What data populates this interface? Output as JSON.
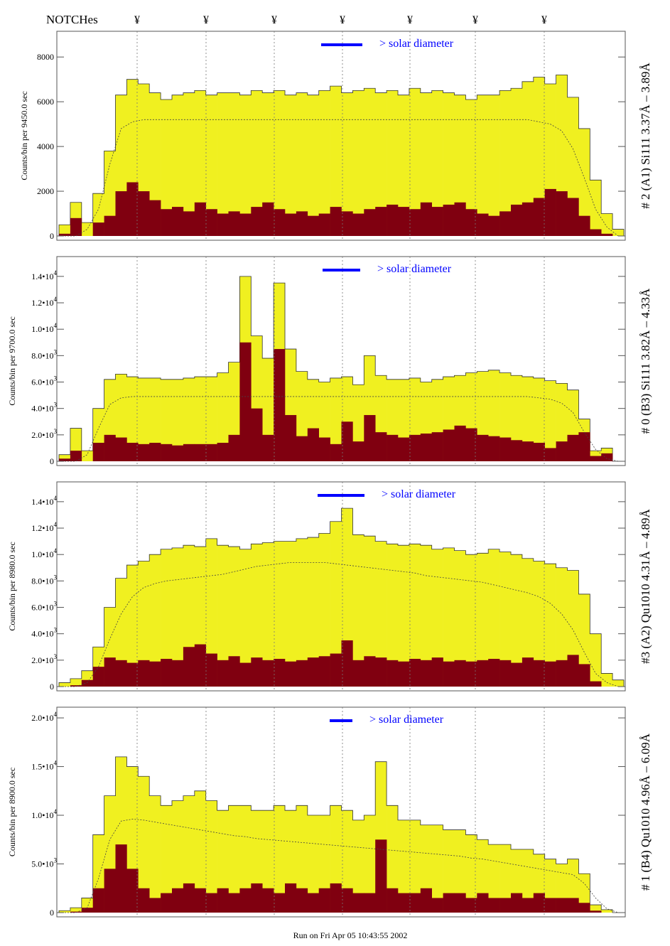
{
  "header": {
    "notches_label": "NOTCHes",
    "notch_symbol": "¥",
    "notch_count": 7
  },
  "footer": {
    "run_text": "Run on Fri Apr 05 10:43:55 2002"
  },
  "colors": {
    "total": "#f0f020",
    "lower": "#800010",
    "legend": "#0000ff"
  },
  "chart_data": [
    {
      "type": "bar",
      "title": "# 2 (A1) Si111  3.37Å – 3.89Å",
      "ylabel": "Counts/bin per   9450.0 sec",
      "legend": "> solar diameter",
      "ylim": [
        0,
        9150
      ],
      "yticks": [
        {
          "v": 0,
          "m": "0",
          "e": ""
        },
        {
          "v": 2000,
          "m": "2000",
          "e": ""
        },
        {
          "v": 4000,
          "m": "4000",
          "e": ""
        },
        {
          "v": 6000,
          "m": "6000",
          "e": ""
        },
        {
          "v": 8000,
          "m": "8000",
          "e": ""
        }
      ],
      "total": [
        500,
        1500,
        600,
        1900,
        3800,
        6300,
        7000,
        6800,
        6400,
        6100,
        6300,
        6400,
        6500,
        6300,
        6400,
        6400,
        6300,
        6500,
        6400,
        6500,
        6300,
        6400,
        6300,
        6500,
        6700,
        6400,
        6500,
        6600,
        6400,
        6500,
        6300,
        6600,
        6400,
        6500,
        6400,
        6300,
        6100,
        6300,
        6300,
        6500,
        6600,
        6900,
        7100,
        6800,
        7200,
        6200,
        4800,
        2500,
        1000,
        300
      ],
      "lower": [
        100,
        800,
        0,
        600,
        900,
        2000,
        2400,
        2000,
        1600,
        1200,
        1300,
        1100,
        1500,
        1200,
        1000,
        1100,
        1000,
        1300,
        1500,
        1200,
        1000,
        1100,
        900,
        1000,
        1300,
        1100,
        1000,
        1200,
        1300,
        1400,
        1300,
        1200,
        1500,
        1300,
        1400,
        1500,
        1200,
        1000,
        900,
        1100,
        1400,
        1500,
        1700,
        2100,
        2000,
        1700,
        900,
        300,
        100,
        0
      ],
      "model": [
        0,
        0,
        300,
        1200,
        3200,
        4800,
        5100,
        5200,
        5200,
        5200,
        5200,
        5200,
        5200,
        5200,
        5200,
        5200,
        5200,
        5200,
        5200,
        5200,
        5200,
        5200,
        5200,
        5200,
        5200,
        5200,
        5200,
        5200,
        5200,
        5200,
        5200,
        5200,
        5200,
        5200,
        5200,
        5200,
        5200,
        5200,
        5200,
        5200,
        5200,
        5200,
        5100,
        5000,
        4700,
        3900,
        2600,
        1200,
        400,
        0
      ]
    },
    {
      "type": "bar",
      "title": "# 0 (B3) Si111  3.82Å – 4.33Å",
      "ylabel": "Counts/bin per   9700.0 sec",
      "legend": "> solar diameter",
      "ylim": [
        0,
        15500
      ],
      "yticks": [
        {
          "v": 0,
          "m": "0",
          "e": ""
        },
        {
          "v": 2000,
          "m": "2.0•10",
          "e": "3"
        },
        {
          "v": 4000,
          "m": "4.0•10",
          "e": "3"
        },
        {
          "v": 6000,
          "m": "6.0•10",
          "e": "3"
        },
        {
          "v": 8000,
          "m": "8.0•10",
          "e": "3"
        },
        {
          "v": 10000,
          "m": "1.0•10",
          "e": "4"
        },
        {
          "v": 12000,
          "m": "1.2•10",
          "e": "4"
        },
        {
          "v": 14000,
          "m": "1.4•10",
          "e": "4"
        }
      ],
      "total": [
        500,
        2500,
        800,
        4000,
        6200,
        6600,
        6400,
        6300,
        6300,
        6200,
        6200,
        6300,
        6400,
        6400,
        6700,
        7500,
        14000,
        9500,
        7800,
        13500,
        8500,
        6800,
        6200,
        6000,
        6300,
        6400,
        5800,
        8000,
        6500,
        6200,
        6200,
        6300,
        6000,
        6200,
        6400,
        6500,
        6700,
        6800,
        6900,
        6700,
        6500,
        6400,
        6300,
        6100,
        5900,
        5400,
        3200,
        800,
        1000,
        0
      ],
      "lower": [
        200,
        800,
        0,
        1400,
        2000,
        1800,
        1400,
        1300,
        1400,
        1300,
        1200,
        1300,
        1300,
        1300,
        1400,
        2000,
        9000,
        4000,
        2000,
        8500,
        3500,
        1900,
        2500,
        1800,
        1300,
        3000,
        1500,
        3500,
        2200,
        2000,
        1800,
        2000,
        2100,
        2200,
        2400,
        2700,
        2500,
        2000,
        1900,
        1800,
        1600,
        1500,
        1400,
        1000,
        1500,
        2000,
        2200,
        400,
        600,
        0
      ],
      "model": [
        0,
        0,
        500,
        2500,
        4300,
        4800,
        4900,
        4900,
        4900,
        4900,
        4900,
        4900,
        4900,
        4900,
        4900,
        4900,
        4900,
        4900,
        4900,
        4900,
        4900,
        4900,
        4900,
        4900,
        4900,
        4900,
        4900,
        4900,
        4900,
        4900,
        4900,
        4900,
        4900,
        4900,
        4900,
        4900,
        4900,
        4900,
        4900,
        4900,
        4900,
        4900,
        4800,
        4700,
        4400,
        3700,
        2200,
        900,
        200,
        0
      ]
    },
    {
      "type": "bar",
      "title": "#3 (A2) Qu1010  4.31Å – 4.89Å",
      "ylabel": "Counts/bin per   8980.0 sec",
      "legend": "> solar diameter",
      "ylim": [
        0,
        15500
      ],
      "yticks": [
        {
          "v": 0,
          "m": "0",
          "e": ""
        },
        {
          "v": 2000,
          "m": "2.0•10",
          "e": "3"
        },
        {
          "v": 4000,
          "m": "4.0•10",
          "e": "3"
        },
        {
          "v": 6000,
          "m": "6.0•10",
          "e": "3"
        },
        {
          "v": 8000,
          "m": "8.0•10",
          "e": "3"
        },
        {
          "v": 10000,
          "m": "1.0•10",
          "e": "4"
        },
        {
          "v": 12000,
          "m": "1.2•10",
          "e": "4"
        },
        {
          "v": 14000,
          "m": "1.4•10",
          "e": "4"
        }
      ],
      "total": [
        300,
        600,
        1200,
        3000,
        6000,
        8200,
        9200,
        9500,
        10000,
        10400,
        10500,
        10700,
        10600,
        11200,
        10700,
        10600,
        10400,
        10800,
        10900,
        11000,
        11000,
        11200,
        11300,
        11600,
        12500,
        13500,
        11500,
        11400,
        11000,
        10800,
        10700,
        10800,
        10700,
        10400,
        10500,
        10300,
        10000,
        10100,
        10400,
        10200,
        10000,
        9700,
        9500,
        9300,
        9000,
        8800,
        7000,
        4000,
        1000,
        500
      ],
      "lower": [
        0,
        100,
        500,
        1500,
        2200,
        2000,
        1800,
        2000,
        1900,
        2100,
        2000,
        3000,
        3200,
        2500,
        2000,
        2300,
        1800,
        2200,
        2000,
        2100,
        1900,
        2000,
        2200,
        2300,
        2500,
        3500,
        2000,
        2300,
        2200,
        2000,
        1900,
        2100,
        2000,
        2200,
        1900,
        2000,
        1900,
        2000,
        2100,
        2000,
        1800,
        2200,
        2000,
        1900,
        2000,
        2400,
        1700,
        400,
        0,
        0
      ],
      "model": [
        0,
        0,
        300,
        1500,
        3600,
        5500,
        6800,
        7500,
        7800,
        8000,
        8100,
        8200,
        8300,
        8400,
        8500,
        8700,
        8900,
        9100,
        9200,
        9300,
        9400,
        9400,
        9400,
        9400,
        9300,
        9200,
        9100,
        9000,
        8900,
        8800,
        8700,
        8600,
        8400,
        8300,
        8200,
        8100,
        8000,
        7900,
        7700,
        7500,
        7300,
        7100,
        6800,
        6300,
        5500,
        4300,
        2600,
        1000,
        300,
        0
      ]
    },
    {
      "type": "bar",
      "title": "# 1 (B4) Qu1010 4.96Å – 6.09Å",
      "ylabel": "Counts/bin per   8900.0 sec",
      "legend": "> solar diameter",
      "ylim": [
        0,
        21100
      ],
      "yticks": [
        {
          "v": 0,
          "m": "0",
          "e": ""
        },
        {
          "v": 5000,
          "m": "5.0•10",
          "e": "3"
        },
        {
          "v": 10000,
          "m": "1.0•10",
          "e": "4"
        },
        {
          "v": 15000,
          "m": "1.5•10",
          "e": "4"
        },
        {
          "v": 20000,
          "m": "2.0•10",
          "e": "4"
        }
      ],
      "total": [
        200,
        500,
        1500,
        8000,
        12000,
        16000,
        15000,
        14000,
        12000,
        11000,
        11500,
        12000,
        12500,
        11500,
        10500,
        11000,
        11000,
        10500,
        10500,
        11000,
        10500,
        11000,
        10000,
        10000,
        11000,
        10500,
        9500,
        10000,
        15500,
        11000,
        9500,
        9500,
        9000,
        9000,
        8500,
        8500,
        8000,
        7500,
        7000,
        7000,
        6500,
        6500,
        6000,
        5500,
        5000,
        5500,
        4000,
        800,
        300,
        0
      ],
      "lower": [
        0,
        100,
        500,
        2500,
        4500,
        7000,
        4500,
        2500,
        1500,
        2000,
        2500,
        3000,
        2500,
        2000,
        2500,
        2000,
        2500,
        3000,
        2500,
        2000,
        3000,
        2500,
        2000,
        2500,
        3000,
        2500,
        2000,
        2000,
        7500,
        2500,
        2000,
        2000,
        2500,
        1500,
        2000,
        2000,
        1500,
        2000,
        1500,
        1500,
        2000,
        1500,
        2000,
        1500,
        1500,
        1500,
        1000,
        200,
        0,
        0
      ],
      "model": [
        0,
        0,
        500,
        3500,
        7500,
        9400,
        9600,
        9500,
        9300,
        9100,
        8900,
        8700,
        8500,
        8300,
        8100,
        7900,
        7800,
        7600,
        7500,
        7400,
        7300,
        7200,
        7100,
        7000,
        6900,
        6800,
        6700,
        6600,
        6500,
        6400,
        6300,
        6200,
        6100,
        6000,
        5900,
        5800,
        5600,
        5500,
        5300,
        5100,
        4900,
        4700,
        4500,
        4300,
        4100,
        3900,
        3000,
        1500,
        400,
        0
      ]
    }
  ]
}
